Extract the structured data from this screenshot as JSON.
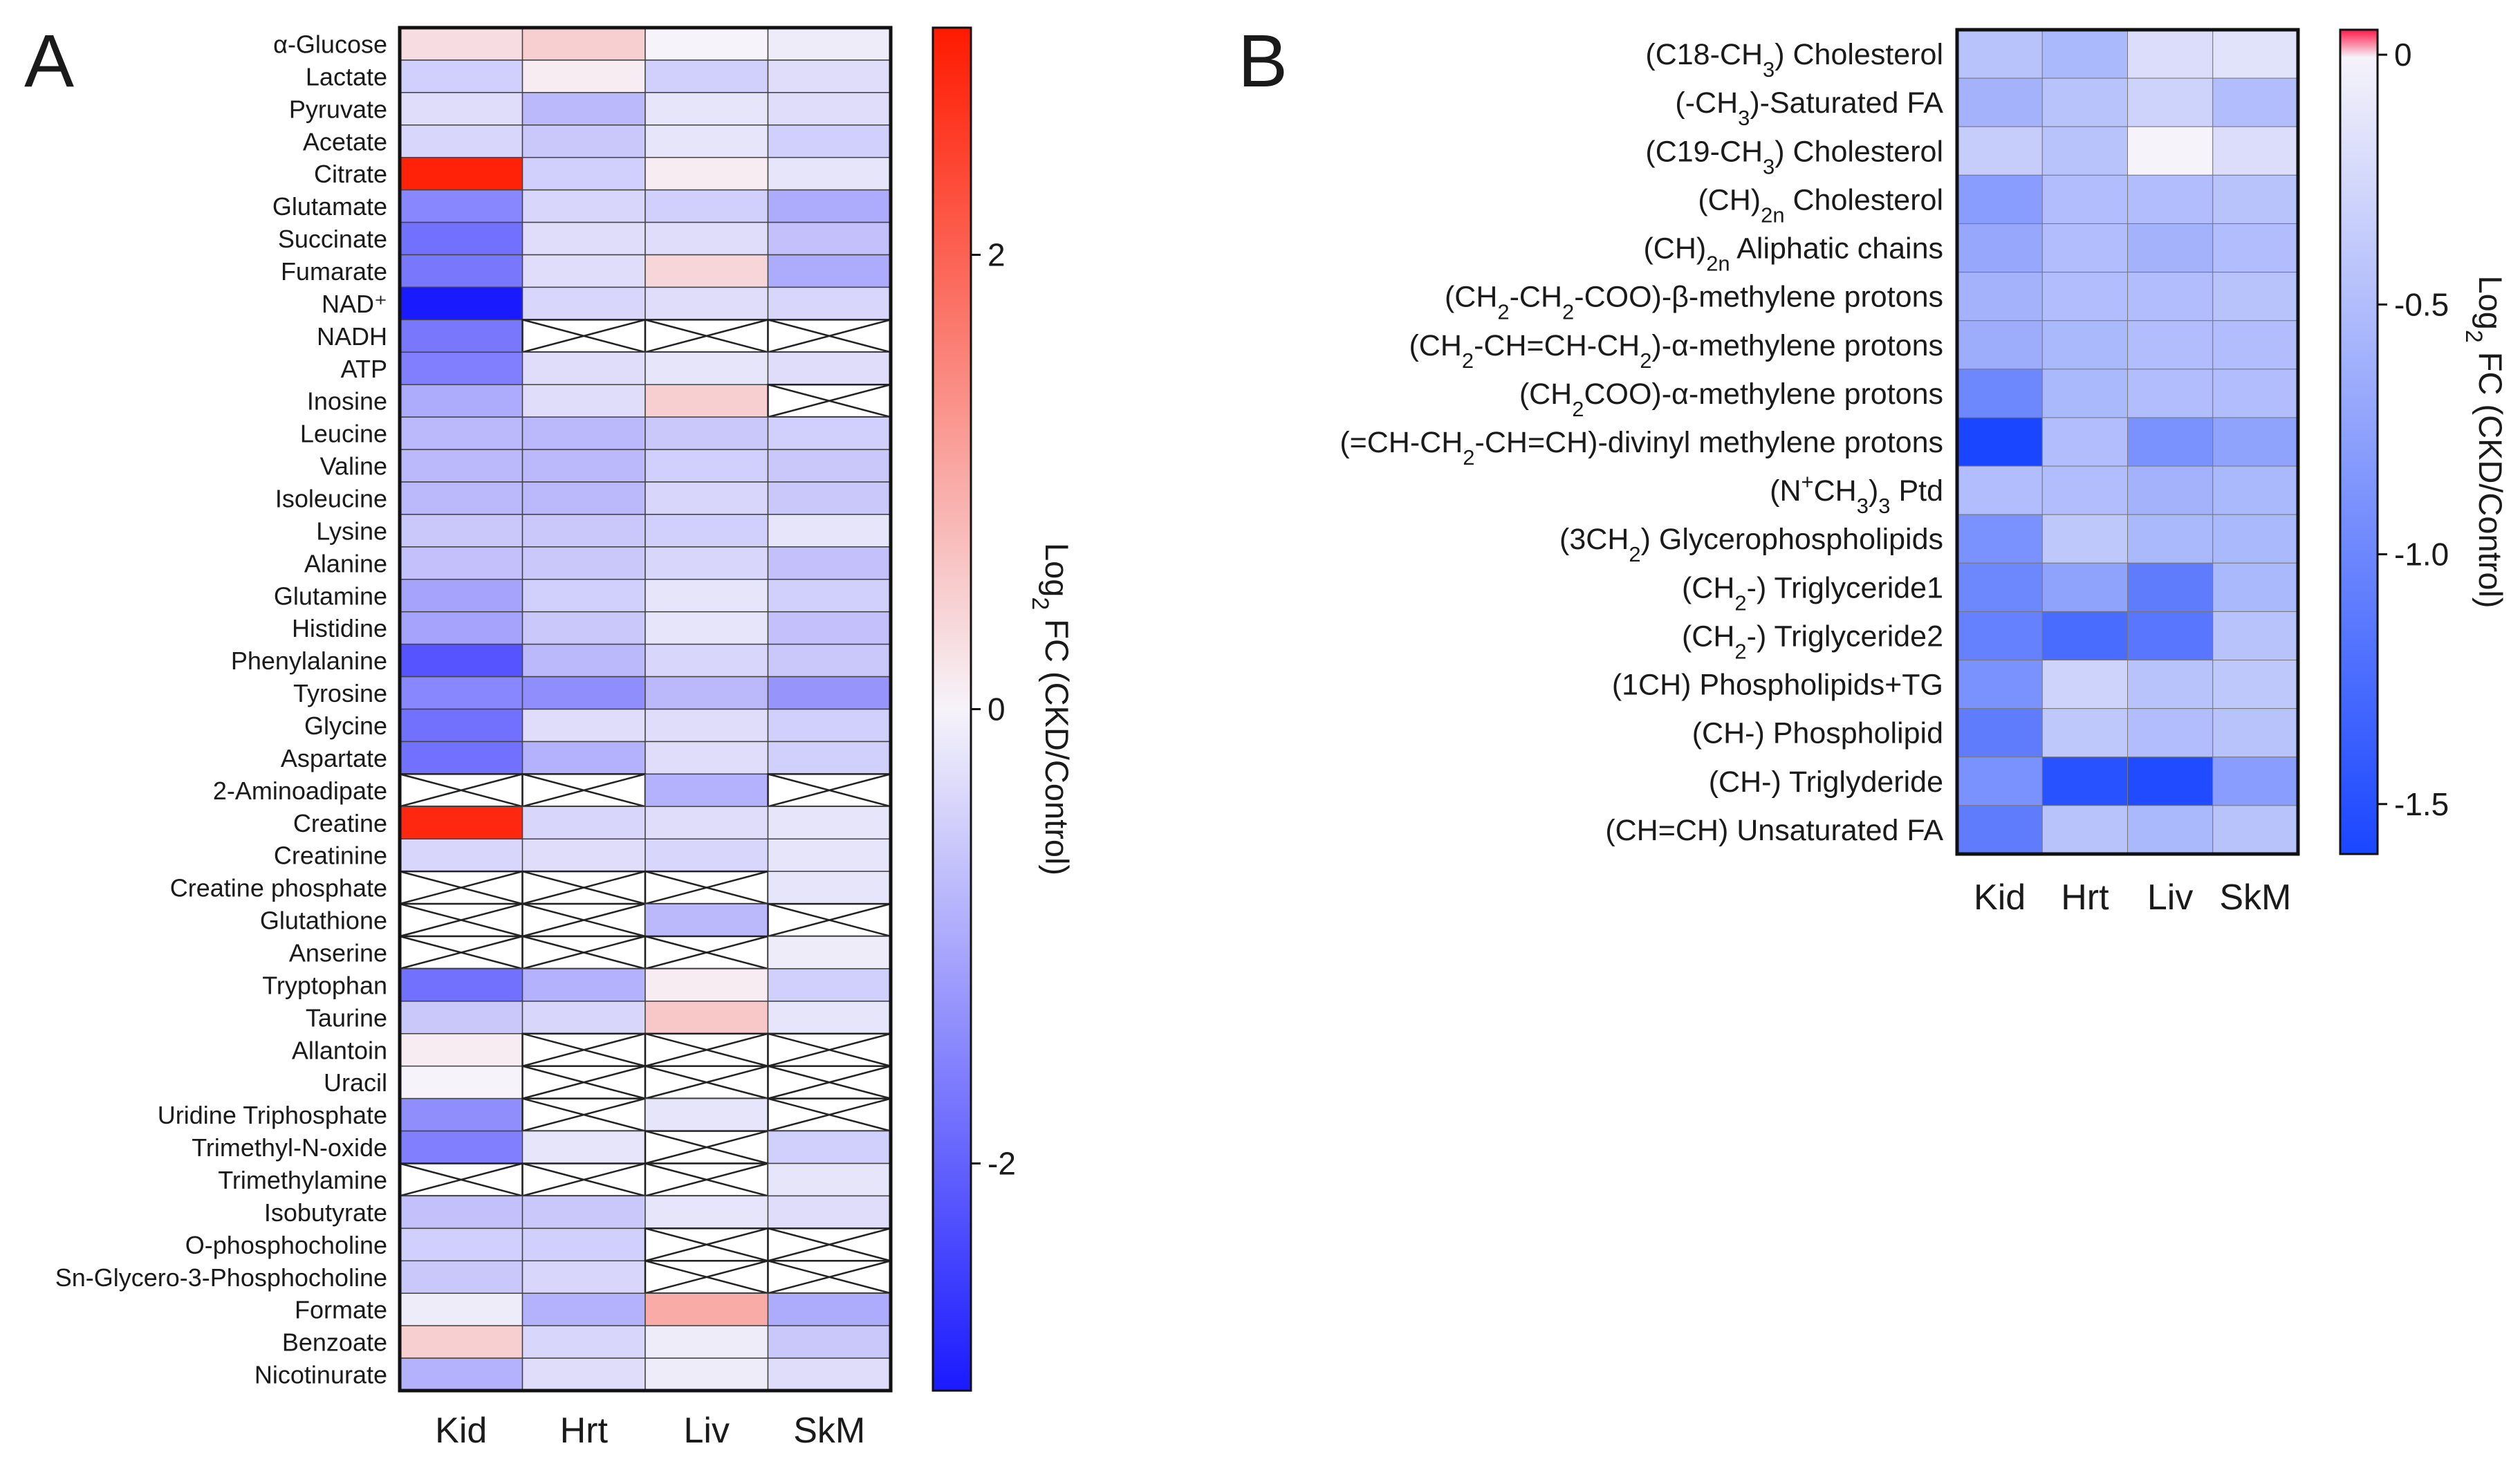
{
  "chart_data": [
    {
      "panel": "A",
      "type": "heatmap",
      "columns": [
        "Kid",
        "Hrt",
        "Liv",
        "SkM"
      ],
      "rows": [
        "α-Glucose",
        "Lactate",
        "Pyruvate",
        "Acetate",
        "Citrate",
        "Glutamate",
        "Succinate",
        "Fumarate",
        "NAD⁺",
        "NADH",
        "ATP",
        "Inosine",
        "Leucine",
        "Valine",
        "Isoleucine",
        "Lysine",
        "Alanine",
        "Glutamine",
        "Histidine",
        "Phenylalanine",
        "Tyrosine",
        "Glycine",
        "Aspartate",
        "2-Aminoadipate",
        "Creatine",
        "Creatinine",
        "Creatine phosphate",
        "Glutathione",
        "Anserine",
        "Tryptophan",
        "Taurine",
        "Allantoin",
        "Uracil",
        "Uridine Triphosphate",
        "Trimethyl-N-oxide",
        "Trimethylamine",
        "Isobutyrate",
        "O-phosphocholine",
        "Sn-Glycero-3-Phosphocholine",
        "Formate",
        "Benzoate",
        "Nicotinurate"
      ],
      "values": [
        [
          0.3,
          0.5,
          0.0,
          -0.1
        ],
        [
          -0.5,
          0.1,
          -0.5,
          -0.3
        ],
        [
          -0.3,
          -0.8,
          -0.2,
          -0.3
        ],
        [
          -0.4,
          -0.6,
          -0.2,
          -0.5
        ],
        [
          2.9,
          -0.5,
          0.1,
          -0.2
        ],
        [
          -1.5,
          -0.4,
          -0.5,
          -1.0
        ],
        [
          -1.8,
          -0.3,
          -0.3,
          -0.7
        ],
        [
          -1.7,
          -0.3,
          0.4,
          -1.0
        ],
        [
          -3.0,
          -0.4,
          -0.3,
          -0.4
        ],
        [
          -1.7,
          null,
          null,
          null
        ],
        [
          -1.6,
          -0.3,
          -0.2,
          -0.3
        ],
        [
          -1.0,
          -0.3,
          0.5,
          null
        ],
        [
          -0.8,
          -0.8,
          -0.6,
          -0.5
        ],
        [
          -0.8,
          -0.8,
          -0.5,
          -0.6
        ],
        [
          -0.8,
          -0.8,
          -0.4,
          -0.6
        ],
        [
          -0.6,
          -0.6,
          -0.5,
          -0.2
        ],
        [
          -0.7,
          -0.6,
          -0.4,
          -0.7
        ],
        [
          -1.1,
          -0.5,
          -0.2,
          -0.5
        ],
        [
          -1.1,
          -0.6,
          -0.2,
          -0.7
        ],
        [
          -2.2,
          -0.8,
          -0.4,
          -0.6
        ],
        [
          -1.5,
          -1.4,
          -0.8,
          -1.3
        ],
        [
          -1.8,
          -0.3,
          -0.3,
          -0.5
        ],
        [
          -1.8,
          -0.9,
          -0.3,
          -0.5
        ],
        [
          null,
          null,
          -0.9,
          null
        ],
        [
          2.8,
          -0.4,
          -0.3,
          -0.2
        ],
        [
          -0.4,
          -0.3,
          -0.4,
          -0.2
        ],
        [
          null,
          null,
          null,
          -0.2
        ],
        [
          null,
          null,
          -0.8,
          null
        ],
        [
          null,
          null,
          null,
          -0.1
        ],
        [
          -1.8,
          -0.9,
          0.1,
          -0.5
        ],
        [
          -0.6,
          -0.4,
          0.6,
          -0.2
        ],
        [
          0.1,
          null,
          null,
          null
        ],
        [
          0.0,
          null,
          null,
          null
        ],
        [
          -1.4,
          null,
          -0.2,
          null
        ],
        [
          -1.6,
          -0.2,
          null,
          -0.5
        ],
        [
          null,
          null,
          null,
          -0.2
        ],
        [
          -0.7,
          -0.6,
          -0.2,
          -0.3
        ],
        [
          -0.5,
          -0.5,
          null,
          null
        ],
        [
          -0.6,
          -0.4,
          null,
          null
        ],
        [
          -0.1,
          -0.9,
          1.0,
          -1.0
        ],
        [
          0.5,
          -0.4,
          -0.1,
          -0.6
        ],
        [
          -0.9,
          -0.3,
          -0.1,
          -0.3
        ]
      ],
      "null_meaning": "crossed-out cell (no value)",
      "columns_x_label": "",
      "colorbar": {
        "title": "Log₂ FC (CKD/Control)",
        "range": [
          -3.0,
          3.0
        ],
        "ticks": [
          2,
          0,
          -2
        ],
        "tick_labels": [
          "2",
          "0",
          "-2"
        ],
        "colors": {
          "low": "#1a1aff",
          "mid": "#6a1bbd",
          "high": "#ff1a00"
        }
      }
    },
    {
      "panel": "B",
      "type": "heatmap",
      "columns": [
        "Kid",
        "Hrt",
        "Liv",
        "SkM"
      ],
      "rows": [
        [
          {
            "t": "(C18-CH"
          },
          {
            "t": "3",
            "s": "sub"
          },
          {
            "t": ") Cholesterol"
          }
        ],
        [
          {
            "t": "(-CH"
          },
          {
            "t": "3",
            "s": "sub"
          },
          {
            "t": ")-Saturated FA"
          }
        ],
        [
          {
            "t": "(C19-CH"
          },
          {
            "t": "3",
            "s": "sub"
          },
          {
            "t": ") Cholesterol"
          }
        ],
        [
          {
            "t": "(CH)"
          },
          {
            "t": "2n",
            "s": "sub"
          },
          {
            "t": " Cholesterol"
          }
        ],
        [
          {
            "t": "(CH)"
          },
          {
            "t": "2n",
            "s": "sub"
          },
          {
            "t": " Aliphatic chains"
          }
        ],
        [
          {
            "t": "(CH"
          },
          {
            "t": "2",
            "s": "sub"
          },
          {
            "t": "-CH"
          },
          {
            "t": "2",
            "s": "sub"
          },
          {
            "t": "-COO)-β-methylene protons"
          }
        ],
        [
          {
            "t": "(CH"
          },
          {
            "t": "2",
            "s": "sub"
          },
          {
            "t": "-CH=CH-CH"
          },
          {
            "t": "2",
            "s": "sub"
          },
          {
            "t": ")-α-methylene protons"
          }
        ],
        [
          {
            "t": "(CH"
          },
          {
            "t": "2",
            "s": "sub"
          },
          {
            "t": "COO)-α-methylene protons"
          }
        ],
        [
          {
            "t": "(=CH-CH"
          },
          {
            "t": "2",
            "s": "sub"
          },
          {
            "t": "-CH=CH)-divinyl methylene protons"
          }
        ],
        [
          {
            "t": "(N"
          },
          {
            "t": "+",
            "s": "sup"
          },
          {
            "t": "CH"
          },
          {
            "t": "3",
            "s": "sub"
          },
          {
            "t": ")"
          },
          {
            "t": "3",
            "s": "sub"
          },
          {
            "t": " Ptd"
          }
        ],
        [
          {
            "t": "(3CH"
          },
          {
            "t": "2",
            "s": "sub"
          },
          {
            "t": ") Glycerophospholipids"
          }
        ],
        [
          {
            "t": "(CH"
          },
          {
            "t": "2",
            "s": "sub"
          },
          {
            "t": "-) Triglyceride1"
          }
        ],
        [
          {
            "t": "(CH"
          },
          {
            "t": "2",
            "s": "sub"
          },
          {
            "t": "-) Triglyceride2"
          }
        ],
        [
          {
            "t": "(1CH) Phospholipids+TG"
          }
        ],
        [
          {
            "t": "(CH-) Phospholipid"
          }
        ],
        [
          {
            "t": "(CH-) Triglyderide"
          }
        ],
        [
          {
            "t": "(CH=CH) Unsaturated FA"
          }
        ]
      ],
      "values": [
        [
          -0.45,
          -0.55,
          -0.2,
          -0.15
        ],
        [
          -0.6,
          -0.45,
          -0.3,
          -0.5
        ],
        [
          -0.35,
          -0.45,
          0.0,
          -0.2
        ],
        [
          -0.8,
          -0.5,
          -0.5,
          -0.45
        ],
        [
          -0.7,
          -0.5,
          -0.6,
          -0.5
        ],
        [
          -0.6,
          -0.5,
          -0.5,
          -0.45
        ],
        [
          -0.65,
          -0.55,
          -0.5,
          -0.5
        ],
        [
          -1.0,
          -0.55,
          -0.5,
          -0.5
        ],
        [
          -1.6,
          -0.5,
          -0.9,
          -0.75
        ],
        [
          -0.5,
          -0.5,
          -0.6,
          -0.55
        ],
        [
          -0.9,
          -0.4,
          -0.55,
          -0.55
        ],
        [
          -1.0,
          -0.75,
          -1.1,
          -0.55
        ],
        [
          -1.05,
          -1.25,
          -1.15,
          -0.45
        ],
        [
          -0.9,
          -0.3,
          -0.45,
          -0.4
        ],
        [
          -1.1,
          -0.4,
          -0.5,
          -0.45
        ],
        [
          -0.9,
          -1.5,
          -1.55,
          -0.8
        ],
        [
          -1.1,
          -0.45,
          -0.55,
          -0.45
        ]
      ],
      "colorbar": {
        "title": "Log₂ FC (CKD/Control)",
        "range": [
          -1.6,
          0.05
        ],
        "ticks": [
          0,
          -0.5,
          -1.0,
          -1.5
        ],
        "tick_labels": [
          "0",
          "-0.5",
          "-1.0",
          "-1.5"
        ],
        "colors": {
          "low": "#1a46ff",
          "mid": "#5a1ccf",
          "high": "#ff1a4a"
        }
      }
    }
  ],
  "panel_labels": [
    "A",
    "B"
  ]
}
